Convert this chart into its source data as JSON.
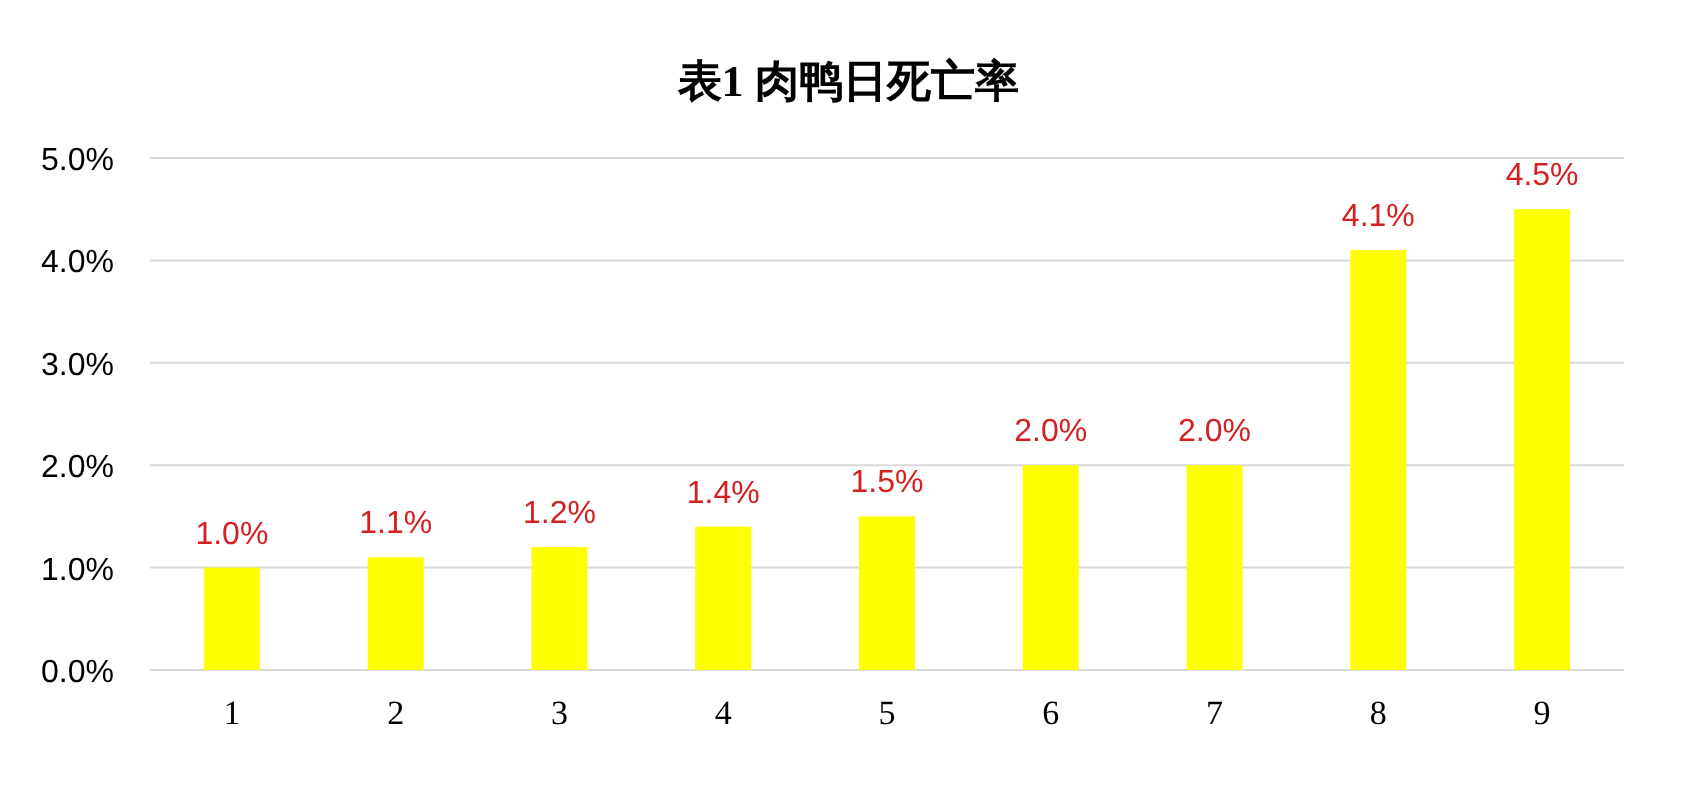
{
  "chart_data": {
    "type": "bar",
    "title": "表1  肉鸭日死亡率",
    "categories": [
      "1",
      "2",
      "3",
      "4",
      "5",
      "6",
      "7",
      "8",
      "9"
    ],
    "values": [
      1.0,
      1.1,
      1.2,
      1.4,
      1.5,
      2.0,
      2.0,
      4.1,
      4.5
    ],
    "value_labels": [
      "1.0%",
      "1.1%",
      "1.2%",
      "1.4%",
      "1.5%",
      "2.0%",
      "2.0%",
      "4.1%",
      "4.5%"
    ],
    "color": "#ffff00",
    "ylim": [
      0,
      5
    ],
    "yticks": [
      {
        "value": 0,
        "label": "0.0%"
      },
      {
        "value": 1,
        "label": "1.0%"
      },
      {
        "value": 2,
        "label": "2.0%"
      },
      {
        "value": 3,
        "label": "3.0%"
      },
      {
        "value": 4,
        "label": "4.0%"
      },
      {
        "value": 5,
        "label": "5.0%"
      }
    ],
    "grid": "y"
  }
}
